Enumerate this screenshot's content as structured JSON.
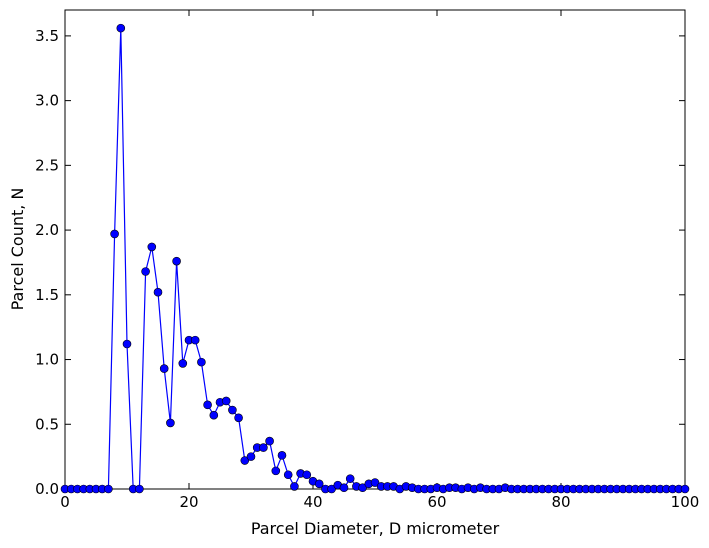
{
  "chart_data": {
    "type": "line",
    "title": "",
    "xlabel": "Parcel Diameter, D micrometer",
    "ylabel": "Parcel Count, N",
    "xlim": [
      0,
      100
    ],
    "ylim": [
      0,
      3.7
    ],
    "xticks": [
      0,
      20,
      40,
      60,
      80,
      100
    ],
    "yticks": [
      0.0,
      0.5,
      1.0,
      1.5,
      2.0,
      2.5,
      3.0,
      3.5
    ],
    "xtick_labels": [
      "0",
      "20",
      "40",
      "60",
      "80",
      "100"
    ],
    "ytick_labels": [
      "0.0",
      "0.5",
      "1.0",
      "1.5",
      "2.0",
      "2.5",
      "3.0",
      "3.5"
    ],
    "grid": false,
    "legend": "none",
    "color": "#0000ff",
    "marker": "circle",
    "series": [
      {
        "x": [
          0,
          1,
          2,
          3,
          4,
          5,
          6,
          7,
          8,
          9,
          10,
          11,
          12,
          13,
          14,
          15,
          16,
          17,
          18,
          19,
          20,
          21,
          22,
          23,
          24,
          25,
          26,
          27,
          28,
          29,
          30,
          31,
          32,
          33,
          34,
          35,
          36,
          37,
          38,
          39,
          40,
          41,
          42,
          43,
          44,
          45,
          46,
          47,
          48,
          49,
          50,
          51,
          52,
          53,
          54,
          55,
          56,
          57,
          58,
          59,
          60,
          61,
          62,
          63,
          64,
          65,
          66,
          67,
          68,
          69,
          70,
          71,
          72,
          73,
          74,
          75,
          76,
          77,
          78,
          79,
          80,
          81,
          82,
          83,
          84,
          85,
          86,
          87,
          88,
          89,
          90,
          91,
          92,
          93,
          94,
          95,
          96,
          97,
          98,
          99,
          100
        ],
        "values": [
          0.0,
          0.0,
          0.0,
          0.0,
          0.0,
          0.0,
          0.0,
          0.0,
          1.97,
          3.56,
          1.12,
          0.0,
          0.0,
          1.68,
          1.87,
          1.52,
          0.93,
          0.51,
          1.76,
          0.97,
          1.15,
          1.15,
          0.98,
          0.65,
          0.57,
          0.67,
          0.68,
          0.61,
          0.55,
          0.22,
          0.25,
          0.32,
          0.32,
          0.37,
          0.14,
          0.26,
          0.11,
          0.02,
          0.12,
          0.11,
          0.06,
          0.04,
          0.0,
          0.0,
          0.03,
          0.01,
          0.08,
          0.02,
          0.01,
          0.04,
          0.05,
          0.02,
          0.02,
          0.02,
          0.0,
          0.02,
          0.01,
          0.0,
          0.0,
          0.0,
          0.01,
          0.0,
          0.01,
          0.01,
          0.0,
          0.01,
          0.0,
          0.01,
          0.0,
          0.0,
          0.0,
          0.01,
          0.0,
          0.0,
          0.0,
          0.0,
          0.0,
          0.0,
          0.0,
          0.0,
          0.0,
          0.0,
          0.0,
          0.0,
          0.0,
          0.0,
          0.0,
          0.0,
          0.0,
          0.0,
          0.0,
          0.0,
          0.0,
          0.0,
          0.0,
          0.0,
          0.0,
          0.0,
          0.0,
          0.0,
          0.0
        ]
      }
    ]
  }
}
